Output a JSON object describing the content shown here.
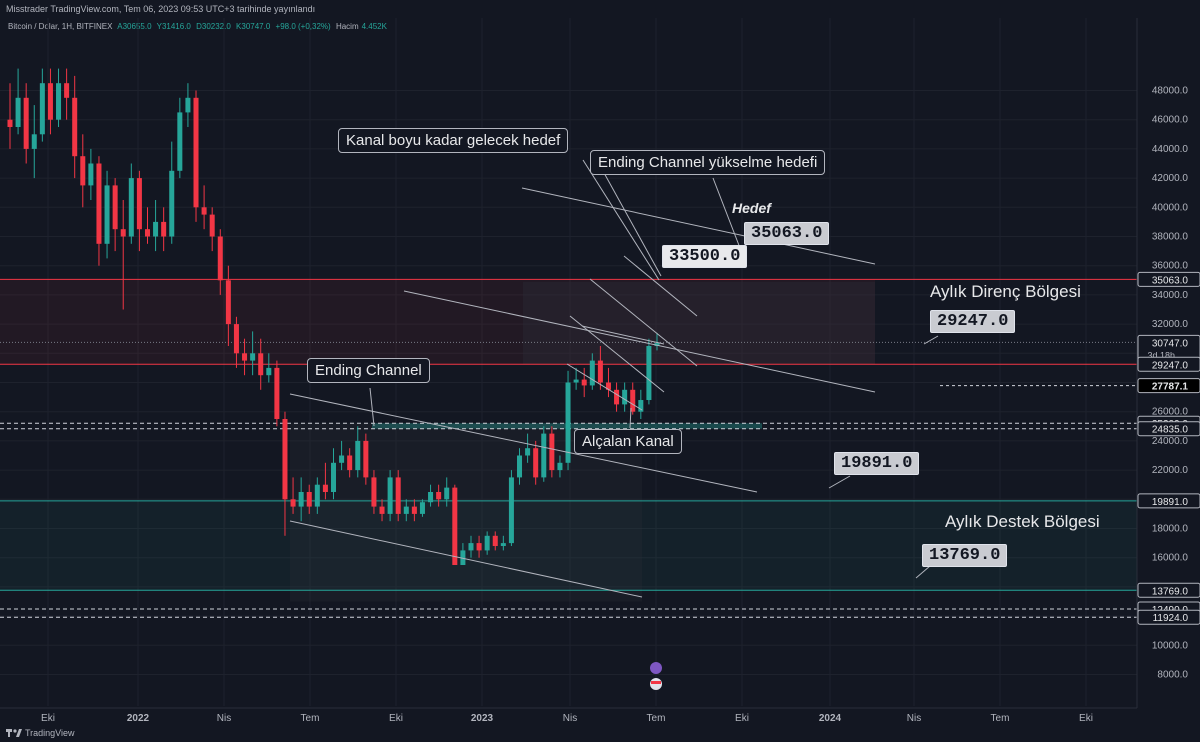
{
  "header": {
    "publisher_text": "Misstrader TradingView.com, Tem 06, 2023 09:53 UTC+3 tarihinde yayınlandı"
  },
  "legend": {
    "symbol": "Bitcoin / Dolar, 1H, BITFINEX",
    "open": "A30655.0",
    "high": "Y31416.0",
    "low": "D30232.0",
    "close": "K30747.0",
    "change": "+98.0 (+0,32%)",
    "volume_label": "Hacim",
    "volume": "4.452K"
  },
  "annotations": {
    "kanal_boyu": "Kanal boyu kadar gelecek hedef",
    "ending_channel_target": "Ending Channel yükselme hedefi",
    "hedef": "Hedef",
    "ending_channel": "Ending Channel",
    "alcalan_kanal": "Alçalan Kanal",
    "aylik_direnc": "Aylık Direnç Bölgesi",
    "aylik_destek": "Aylık Destek Bölgesi",
    "box_33500": "33500.0",
    "box_35063": "35063.0",
    "box_29247": "29247.0",
    "box_19891": "19891.0",
    "box_13769": "13769.0"
  },
  "colors": {
    "background": "#131722",
    "up_candle": "#26a69a",
    "down_candle": "#f23645",
    "resistance_line": "#f23645",
    "support_line": "#26a69a",
    "trend_line": "#b2b5be"
  },
  "chart_data": {
    "type": "candlestick",
    "symbol": "Bitcoin / Dolar, 1H, BITFINEX",
    "y_range": [
      7000,
      50000
    ],
    "y_ticks": [
      8000,
      10000,
      12000,
      14000,
      16000,
      18000,
      20000,
      22000,
      24000,
      26000,
      28000,
      30000,
      32000,
      34000,
      36000,
      38000,
      40000,
      42000,
      44000,
      46000,
      48000
    ],
    "x_ticks": [
      "Eki",
      "2022",
      "Nis",
      "Tem",
      "Eki",
      "2023",
      "Nis",
      "Tem",
      "Eki",
      "2024",
      "Nis",
      "Tem",
      "Eki"
    ],
    "price_labels": [
      {
        "value": 35063.0,
        "text": "35063.0",
        "kind": "resistance"
      },
      {
        "value": 30747.0,
        "text": "30747.0",
        "kind": "last",
        "sub": "3d 18h"
      },
      {
        "value": 29247.0,
        "text": "29247.0",
        "kind": "resistance"
      },
      {
        "value": 27787.1,
        "text": "27787.1",
        "kind": "marker"
      },
      {
        "value": 25209.0,
        "text": "25209.0",
        "kind": "dashed"
      },
      {
        "value": 24835.0,
        "text": "24835.0",
        "kind": "dashed"
      },
      {
        "value": 19891.0,
        "text": "19891.0",
        "kind": "support"
      },
      {
        "value": 13769.0,
        "text": "13769.0",
        "kind": "support"
      },
      {
        "value": 12490.0,
        "text": "12490.0",
        "kind": "dashed"
      },
      {
        "value": 11924.0,
        "text": "11924.0",
        "kind": "dashed"
      }
    ],
    "candles": [
      [
        46000,
        45500,
        48500,
        44000
      ],
      [
        45500,
        47500,
        49500,
        45000
      ],
      [
        47500,
        44000,
        48500,
        43000
      ],
      [
        44000,
        45000,
        47000,
        42000
      ],
      [
        45000,
        48500,
        49500,
        44500
      ],
      [
        48500,
        46000,
        49500,
        45000
      ],
      [
        46000,
        48500,
        49500,
        45500
      ],
      [
        48500,
        47500,
        49500,
        46000
      ],
      [
        47500,
        43500,
        49000,
        42000
      ],
      [
        43500,
        41500,
        45000,
        40000
      ],
      [
        41500,
        43000,
        44000,
        40500
      ],
      [
        43000,
        37500,
        43500,
        36000
      ],
      [
        37500,
        41500,
        42500,
        36500
      ],
      [
        41500,
        38500,
        42000,
        37000
      ],
      [
        38500,
        38000,
        40500,
        33000
      ],
      [
        38000,
        42000,
        43000,
        37500
      ],
      [
        42000,
        38500,
        42500,
        37000
      ],
      [
        38500,
        38000,
        40000,
        37500
      ],
      [
        38000,
        39000,
        40500,
        37000
      ],
      [
        39000,
        38000,
        40000,
        37000
      ],
      [
        38000,
        42500,
        44500,
        37500
      ],
      [
        42500,
        46500,
        47500,
        42000
      ],
      [
        46500,
        47500,
        48500,
        45500
      ],
      [
        47500,
        40000,
        48000,
        39000
      ],
      [
        40000,
        39500,
        41500,
        38500
      ],
      [
        39500,
        38000,
        40000,
        37000
      ],
      [
        38000,
        35000,
        38500,
        34000
      ],
      [
        35000,
        32000,
        36000,
        30500
      ],
      [
        32000,
        30000,
        32500,
        29000
      ],
      [
        30000,
        29500,
        31000,
        28500
      ],
      [
        29500,
        30000,
        31500,
        28500
      ],
      [
        30000,
        28500,
        31000,
        27500
      ],
      [
        28500,
        29000,
        30000,
        28000
      ],
      [
        29000,
        25500,
        29500,
        25000
      ],
      [
        25500,
        20000,
        26000,
        17500
      ],
      [
        20000,
        19500,
        21500,
        19000
      ],
      [
        19500,
        20500,
        21500,
        18500
      ],
      [
        20500,
        19500,
        21000,
        19000
      ],
      [
        19500,
        21000,
        21500,
        19000
      ],
      [
        21000,
        20500,
        22500,
        20000
      ],
      [
        20500,
        22500,
        23500,
        20000
      ],
      [
        22500,
        23000,
        24000,
        22000
      ],
      [
        23000,
        22000,
        23500,
        21500
      ],
      [
        22000,
        24000,
        25000,
        21500
      ],
      [
        24000,
        21500,
        24500,
        21000
      ],
      [
        21500,
        19500,
        22000,
        19000
      ],
      [
        19500,
        19000,
        20000,
        18500
      ],
      [
        19000,
        21500,
        22000,
        18500
      ],
      [
        21500,
        19000,
        22000,
        18500
      ],
      [
        19000,
        19500,
        20000,
        18500
      ],
      [
        19500,
        19000,
        20000,
        18500
      ],
      [
        19000,
        19800,
        20000,
        18800
      ],
      [
        19800,
        20500,
        21000,
        19500
      ],
      [
        20500,
        20000,
        21000,
        19500
      ],
      [
        20000,
        20800,
        21500,
        19500
      ],
      [
        20800,
        15500,
        21000,
        15500
      ],
      [
        15500,
        16500,
        17000,
        15500
      ],
      [
        16500,
        17000,
        17500,
        16000
      ],
      [
        17000,
        16500,
        17500,
        16000
      ],
      [
        16500,
        17500,
        17800,
        16200
      ],
      [
        17500,
        16800,
        17800,
        16500
      ],
      [
        16800,
        17000,
        17500,
        16500
      ],
      [
        17000,
        21500,
        22000,
        16800
      ],
      [
        21500,
        23000,
        23500,
        21000
      ],
      [
        23000,
        23500,
        24500,
        22500
      ],
      [
        23500,
        21500,
        24000,
        21000
      ],
      [
        21500,
        24500,
        25000,
        21200
      ],
      [
        24500,
        22000,
        25000,
        21500
      ],
      [
        22000,
        22500,
        23000,
        21500
      ],
      [
        22500,
        28000,
        28800,
        22000
      ],
      [
        28000,
        28200,
        29000,
        27500
      ],
      [
        28200,
        27800,
        29000,
        27000
      ],
      [
        27800,
        29500,
        30000,
        27500
      ],
      [
        29500,
        28000,
        30500,
        27500
      ],
      [
        28000,
        27500,
        29000,
        27000
      ],
      [
        27500,
        26500,
        28000,
        26000
      ],
      [
        26500,
        27500,
        28000,
        26000
      ],
      [
        27500,
        26000,
        28000,
        25800
      ],
      [
        26000,
        26800,
        27500,
        25500
      ],
      [
        26800,
        30500,
        31000,
        26500
      ],
      [
        30500,
        30700,
        31400,
        30200
      ]
    ],
    "series": [
      {
        "name": "Ending Channel",
        "type": "channel"
      },
      {
        "name": "Alçalan Kanal",
        "type": "channel"
      }
    ]
  }
}
